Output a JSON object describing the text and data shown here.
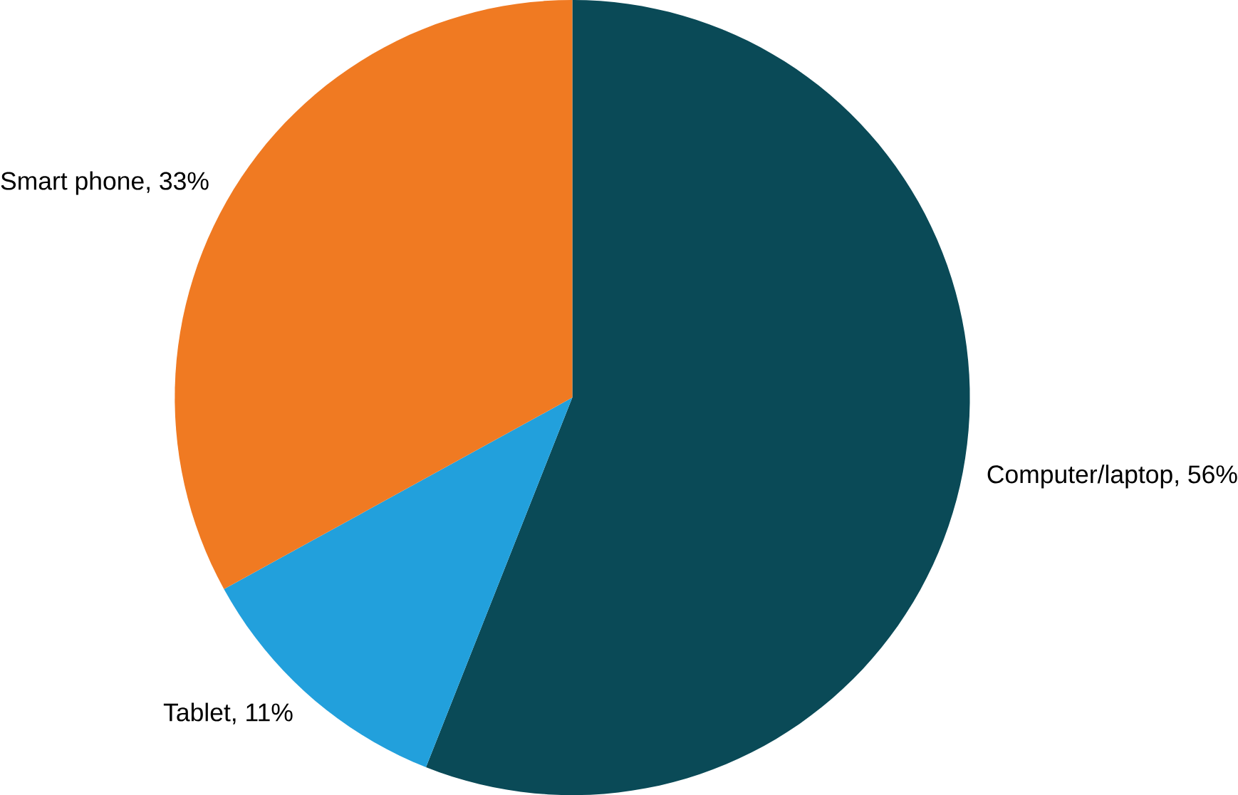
{
  "chart_data": {
    "type": "pie",
    "categories": [
      "Computer/laptop, 56%",
      "Tablet, 11%",
      "Smart phone, 33%"
    ],
    "values": [
      56,
      11,
      33
    ],
    "colors": [
      "#0a4a57",
      "#22a0dc",
      "#f07a22"
    ]
  }
}
